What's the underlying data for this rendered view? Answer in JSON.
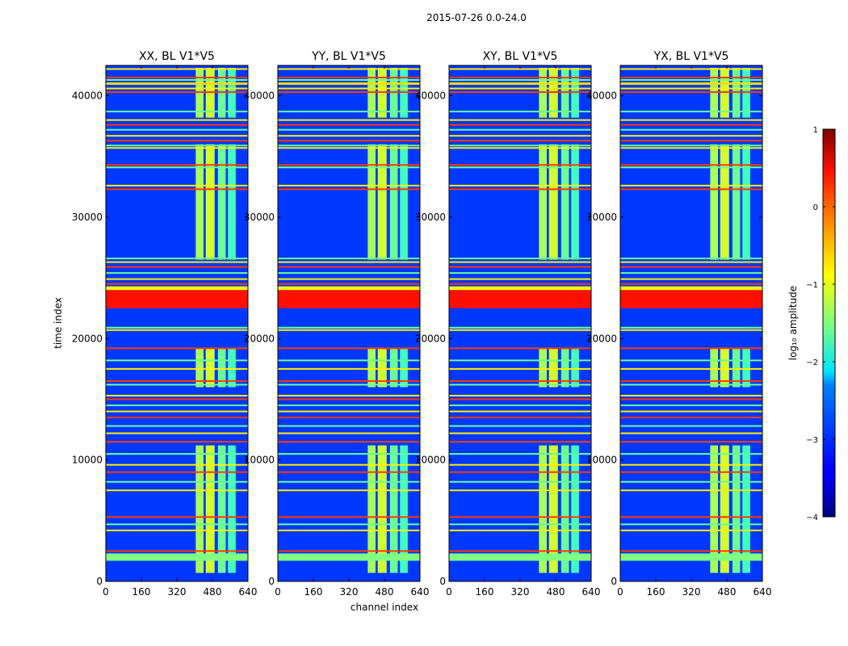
{
  "figure": {
    "suptitle": "2015-07-26 0.0-24.0",
    "xlabel": "channel index",
    "ylabel": "time index"
  },
  "chart_data": {
    "type": "heatmap",
    "x_range": [
      0,
      640
    ],
    "y_range": [
      0,
      42500
    ],
    "x_ticks": [
      0,
      160,
      320,
      480,
      640
    ],
    "y_ticks": [
      0,
      10000,
      20000,
      30000,
      40000
    ],
    "panels": [
      {
        "title": "XX, BL V1*V5"
      },
      {
        "title": "YY, BL V1*V5"
      },
      {
        "title": "XY, BL V1*V5"
      },
      {
        "title": "YX, BL V1*V5"
      }
    ],
    "colorbar": {
      "label": "log₁₀ amplitude",
      "min": -4,
      "max": 1,
      "ticks": [
        1,
        0,
        -1,
        -2,
        -3,
        -4
      ],
      "colormap": "jet"
    },
    "background_level": -3.1,
    "signal_channel_bands": [
      {
        "from": 405,
        "to": 440,
        "level": -1.3
      },
      {
        "from": 450,
        "to": 490,
        "level": -1.1
      },
      {
        "from": 505,
        "to": 540,
        "level": -1.6
      },
      {
        "from": 550,
        "to": 585,
        "level": -1.8
      }
    ],
    "signal_time_ranges": [
      {
        "from": 700,
        "to": 11200
      },
      {
        "from": 16000,
        "to": 19200
      },
      {
        "from": 26500,
        "to": 36000
      },
      {
        "from": 38200,
        "to": 42300
      }
    ],
    "flagged_time_bands": [
      {
        "from": 1700,
        "to": 2300,
        "level": -1.5
      },
      {
        "from": 22500,
        "to": 24000,
        "level": 0.3
      },
      {
        "from": 24000,
        "to": 24300,
        "level": -0.9
      },
      {
        "from": 40900,
        "to": 41100,
        "level": -0.7
      }
    ],
    "flagged_time_lines": [
      2500,
      4200,
      4700,
      5300,
      7500,
      8200,
      9000,
      9600,
      10500,
      11500,
      12200,
      12800,
      13500,
      14000,
      14500,
      15000,
      15300,
      16200,
      16500,
      17500,
      18200,
      19200,
      20700,
      20900,
      24500,
      24900,
      25400,
      25900,
      26300,
      26600,
      32300,
      32600,
      34100,
      34300,
      35700,
      35900,
      36300,
      36700,
      37200,
      37600,
      38000,
      38700,
      40300,
      40600,
      41300,
      41500,
      42200
    ]
  }
}
